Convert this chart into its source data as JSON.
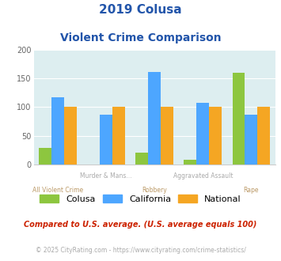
{
  "title_line1": "2019 Colusa",
  "title_line2": "Violent Crime Comparison",
  "categories": [
    "All Violent Crime",
    "Murder & Mans...",
    "Robbery",
    "Aggravated Assault",
    "Rape"
  ],
  "colusa": [
    29,
    0,
    21,
    8,
    159
  ],
  "california": [
    117,
    86,
    161,
    107,
    87
  ],
  "national": [
    100,
    100,
    100,
    100,
    100
  ],
  "colusa_color": "#8dc63f",
  "california_color": "#4da6ff",
  "national_color": "#f5a623",
  "ylim": [
    0,
    200
  ],
  "yticks": [
    0,
    50,
    100,
    150,
    200
  ],
  "bg_color": "#ddeef0",
  "title_color": "#2255aa",
  "subtitle_text": "Compared to U.S. average. (U.S. average equals 100)",
  "subtitle_color": "#cc2200",
  "footer_text": "© 2025 CityRating.com - https://www.cityrating.com/crime-statistics/",
  "footer_color": "#aaaaaa",
  "footer_link_color": "#4488cc",
  "legend_labels": [
    "Colusa",
    "California",
    "National"
  ],
  "xlabel_top": [
    "",
    "Murder & Mans...",
    "",
    "Aggravated Assault",
    ""
  ],
  "xlabel_bot": [
    "All Violent Crime",
    "",
    "Robbery",
    "",
    "Rape"
  ],
  "xlabel_top_color": "#aaaaaa",
  "xlabel_bot_color": "#bb9966"
}
